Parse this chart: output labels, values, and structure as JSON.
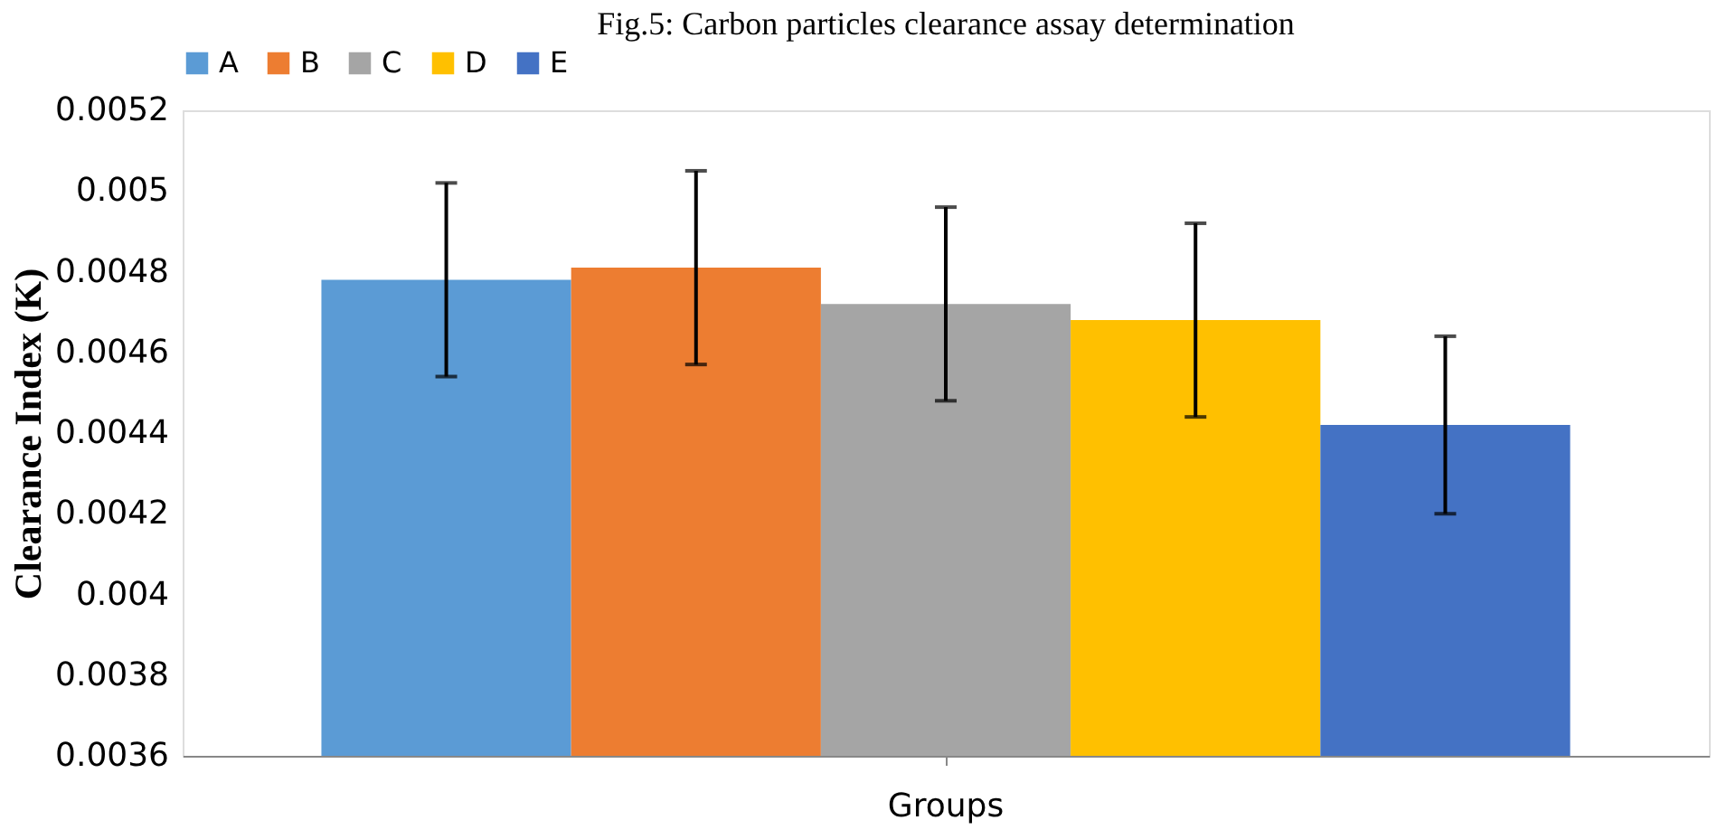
{
  "chart_data": {
    "type": "bar",
    "title": "Fig.5: Carbon particles clearance assay determination",
    "ylabel": "Clearance Index (K)",
    "categories": [
      "Groups"
    ],
    "series": [
      {
        "name": "A",
        "color": "#5b9bd5",
        "values": [
          0.00478
        ],
        "errors": [
          0.00024
        ]
      },
      {
        "name": "B",
        "color": "#ed7d31",
        "values": [
          0.00481
        ],
        "errors": [
          0.00024
        ]
      },
      {
        "name": "C",
        "color": "#a5a5a5",
        "values": [
          0.00472
        ],
        "errors": [
          0.00024
        ]
      },
      {
        "name": "D",
        "color": "#ffc000",
        "values": [
          0.00468
        ],
        "errors": [
          0.00024
        ]
      },
      {
        "name": "E",
        "color": "#4472c4",
        "values": [
          0.00442
        ],
        "errors": [
          0.00022
        ]
      }
    ],
    "ylim": [
      0.0036,
      0.0052
    ],
    "yticks": [
      0.0036,
      0.0038,
      0.004,
      0.0042,
      0.0044,
      0.0046,
      0.0048,
      0.005,
      0.0052
    ],
    "grid": false,
    "legend": "top"
  }
}
